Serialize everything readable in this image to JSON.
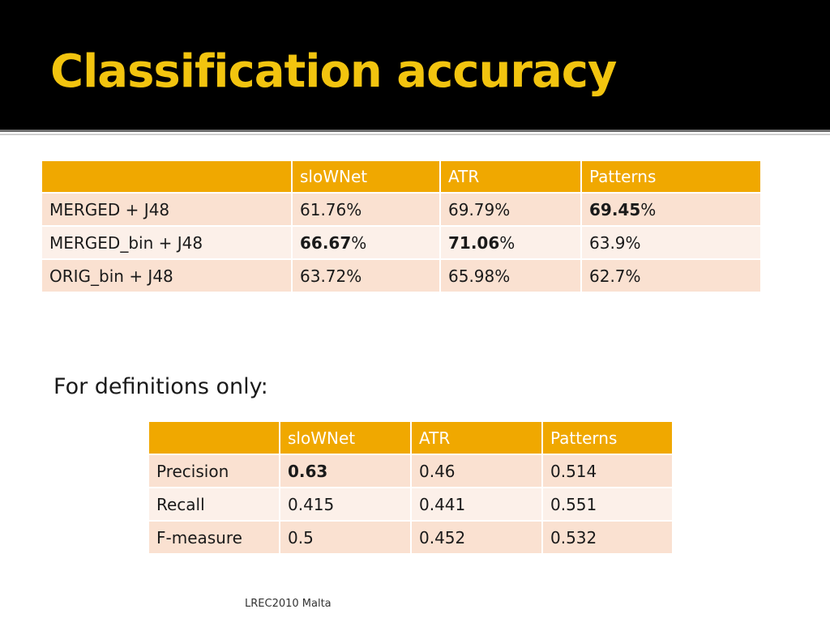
{
  "slide": {
    "title": "Classification accuracy",
    "subheading": "For definitions only:",
    "footer": "LREC2010 Malta"
  },
  "colors": {
    "title_band": "#000000",
    "title_text": "#f2c40f",
    "table_header": "#f0a800",
    "row_odd": "#fae1d1",
    "row_even": "#fcf0e9"
  },
  "accuracy_table": {
    "headers": [
      "",
      "sloWNet",
      "ATR",
      "Patterns"
    ],
    "rows": [
      {
        "label": "MERGED + J48",
        "cells": [
          {
            "bold": "",
            "text": "61.76%"
          },
          {
            "bold": "",
            "text": "69.79%"
          },
          {
            "bold": "69.45",
            "text": "%"
          }
        ]
      },
      {
        "label": "MERGED_bin + J48",
        "cells": [
          {
            "bold": "66.67",
            "text": "%"
          },
          {
            "bold": "71.06",
            "text": "%"
          },
          {
            "bold": "",
            "text": "63.9%"
          }
        ]
      },
      {
        "label": "ORIG_bin + J48",
        "cells": [
          {
            "bold": "",
            "text": "63.72%"
          },
          {
            "bold": "",
            "text": "65.98%"
          },
          {
            "bold": "",
            "text": "62.7%"
          }
        ]
      }
    ]
  },
  "definitions_table": {
    "headers": [
      "",
      "sloWNet",
      "ATR",
      "Patterns"
    ],
    "rows": [
      {
        "label": "Precision",
        "cells": [
          {
            "bold": "0.63",
            "text": ""
          },
          {
            "bold": "",
            "text": "0.46"
          },
          {
            "bold": "",
            "text": "0.514"
          }
        ]
      },
      {
        "label": "Recall",
        "cells": [
          {
            "bold": "",
            "text": "0.415"
          },
          {
            "bold": "",
            "text": "0.441"
          },
          {
            "bold": "",
            "text": "0.551"
          }
        ]
      },
      {
        "label": "F-measure",
        "cells": [
          {
            "bold": "",
            "text": "0.5"
          },
          {
            "bold": "",
            "text": "0.452"
          },
          {
            "bold": "",
            "text": "0.532"
          }
        ]
      }
    ]
  }
}
